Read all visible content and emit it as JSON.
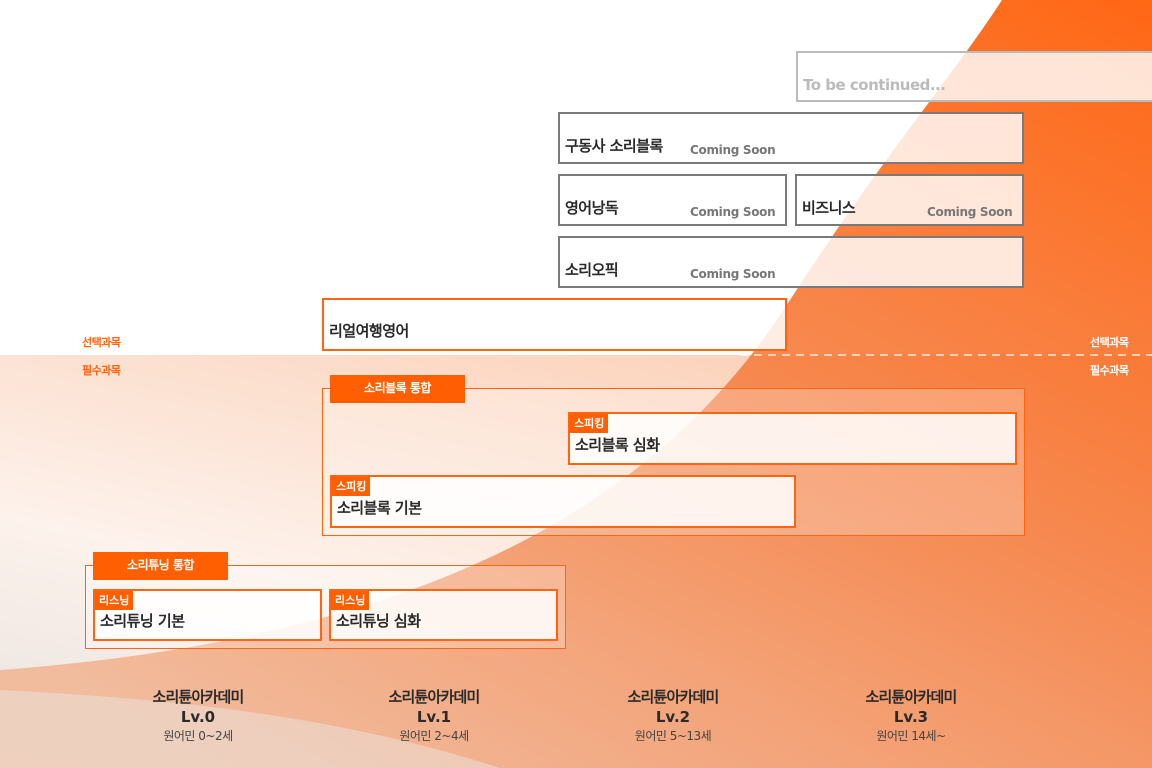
{
  "colors": {
    "accent": "#ff5f00",
    "optional_border": "#7a7a7a",
    "future_border": "#bbbbbb"
  },
  "section_labels": {
    "optional": "선택과목",
    "required": "필수과목"
  },
  "optional_courses": [
    {
      "title": "",
      "note": "To be continued..."
    },
    {
      "title": "구동사 소리블록",
      "note": "Coming Soon"
    },
    {
      "title": "영어낭독",
      "note": "Coming Soon"
    },
    {
      "title": "비즈니스",
      "note": "Coming Soon"
    },
    {
      "title": "소리오픽",
      "note": "Coming Soon"
    },
    {
      "title": "리얼여행영어"
    }
  ],
  "groups": [
    {
      "title": "소리블록 통합",
      "courses": [
        {
          "tag": "스피킹",
          "title": "소리블록 심화"
        },
        {
          "tag": "스피킹",
          "title": "소리블록 기본"
        }
      ]
    },
    {
      "title": "소리튜닝 통합",
      "courses": [
        {
          "tag": "리스닝",
          "title": "소리튜닝 기본"
        },
        {
          "tag": "리스닝",
          "title": "소리튜닝 심화"
        }
      ]
    }
  ],
  "levels": [
    {
      "name": "소리튠아카데미",
      "level": "Lv.0",
      "age": "원어민 0~2세"
    },
    {
      "name": "소리튠아카데미",
      "level": "Lv.1",
      "age": "원어민 2~4세"
    },
    {
      "name": "소리튠아카데미",
      "level": "Lv.2",
      "age": "원어민 5~13세"
    },
    {
      "name": "소리튠아카데미",
      "level": "Lv.3",
      "age": "원어민 14세~"
    }
  ]
}
